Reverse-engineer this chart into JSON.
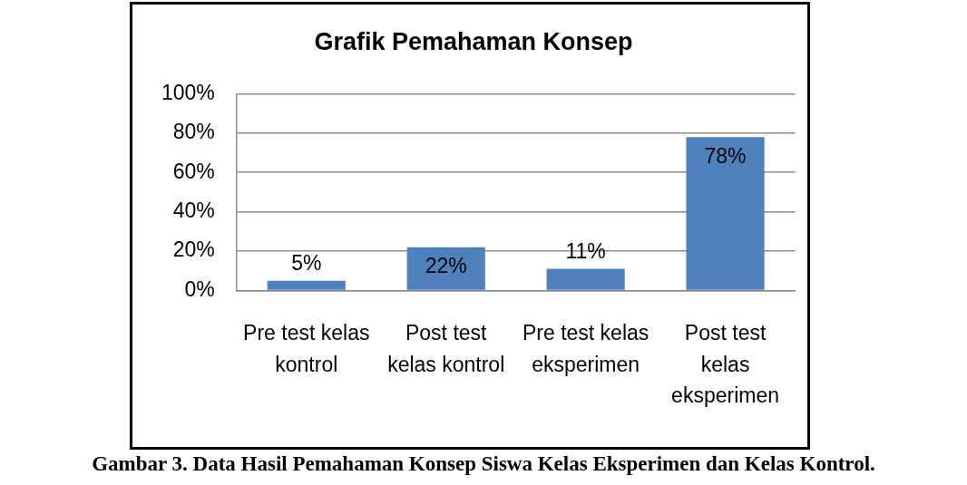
{
  "chart_data": {
    "type": "bar",
    "title": "Grafik Pemahaman Konsep",
    "categories": [
      "Pre test kelas kontrol",
      "Post test kelas kontrol",
      "Pre test kelas eksperimen",
      "Post test kelas eksperimen"
    ],
    "values": [
      5,
      22,
      11,
      78
    ],
    "value_labels": [
      "5%",
      "22%",
      "11%",
      "78%"
    ],
    "color": "#4f81bd",
    "ylim": [
      0,
      100
    ],
    "yticks": [
      {
        "value": 0,
        "label": "0%"
      },
      {
        "value": 20,
        "label": "20%"
      },
      {
        "value": 40,
        "label": "40%"
      },
      {
        "value": 60,
        "label": "60%"
      },
      {
        "value": 80,
        "label": "80%"
      },
      {
        "value": 100,
        "label": "100%"
      }
    ],
    "grid": "y",
    "annotations": [
      "Gambar 3. Data Hasil Pemahaman Konsep Siswa Kelas Eksperimen dan Kelas Kontrol."
    ]
  }
}
